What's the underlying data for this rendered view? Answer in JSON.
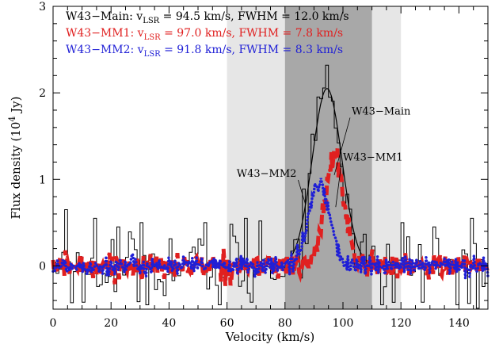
{
  "chart_data": {
    "type": "line",
    "xlabel": "Velocity (km/s)",
    "ylabel_parts": {
      "main": "Flux density (10",
      "sup": "4",
      "tail": " Jy)"
    },
    "xlim": [
      0,
      150
    ],
    "ylim": [
      -0.5,
      3
    ],
    "xticks": [
      0,
      20,
      40,
      60,
      80,
      100,
      120,
      140
    ],
    "xtick_labels": [
      "0",
      "20",
      "40",
      "60",
      "80",
      "100",
      "120",
      "140"
    ],
    "yticks": [
      0,
      1,
      2,
      3
    ],
    "ytick_labels": [
      "0",
      "1",
      "2",
      "3"
    ],
    "grid": false,
    "shaded_regions": [
      {
        "x": [
          60,
          120
        ],
        "color": "#e6e6e6"
      },
      {
        "x": [
          80,
          110
        ],
        "color": "#a8a8a8"
      }
    ],
    "legend_lines": [
      {
        "name": "W43−Main",
        "sep": ": v",
        "sub": "LSR",
        "rest": " = 94.5 km/s, FWHM = 12.0 km/s",
        "color": "#000000"
      },
      {
        "name": "W43−MM1",
        "sep": ": v",
        "sub": "LSR",
        "rest": " = 97.0 km/s, FWHM = 7.8 km/s",
        "color": "#e02020"
      },
      {
        "name": "W43−MM2",
        "sep": ": v",
        "sub": "LSR",
        "rest": " = 91.8 km/s, FWHM = 8.3 km/s",
        "color": "#1f1fd6"
      }
    ],
    "annotations": [
      {
        "text": "W43−Main",
        "x": 103,
        "y": 1.75,
        "anchor": "start",
        "line_to": [
          97,
          1.05
        ]
      },
      {
        "text": "W43−MM1",
        "x": 100,
        "y": 1.22,
        "anchor": "start",
        "line_to": [
          97.5,
          0.68
        ]
      },
      {
        "text": "W43−MM2",
        "x": 84,
        "y": 1.03,
        "anchor": "end",
        "line_to": [
          87,
          0.72
        ]
      }
    ],
    "series": [
      {
        "name": "W43−Main",
        "kind": "histogram",
        "color": "#000000",
        "gauss": {
          "amp": 2.05,
          "center": 94.5,
          "fwhm": 12.0
        },
        "noise_sigma": 0.2,
        "spike_points": [
          {
            "x": 4,
            "y": 0.65
          },
          {
            "x": 14,
            "y": 0.55
          },
          {
            "x": 22,
            "y": 0.45
          },
          {
            "x": 30,
            "y": 0.5
          },
          {
            "x": 52,
            "y": 0.5
          },
          {
            "x": 61,
            "y": 0.48
          },
          {
            "x": 66,
            "y": 0.55
          },
          {
            "x": 71,
            "y": 0.52
          },
          {
            "x": 94,
            "y": 2.32
          },
          {
            "x": 120,
            "y": 0.5
          },
          {
            "x": 131,
            "y": 0.45
          },
          {
            "x": 144,
            "y": 0.55
          },
          {
            "x": 10,
            "y": -0.42
          },
          {
            "x": 32,
            "y": -0.45
          },
          {
            "x": 57,
            "y": -0.45
          },
          {
            "x": 68,
            "y": -0.42
          },
          {
            "x": 113,
            "y": -0.45
          },
          {
            "x": 127,
            "y": -0.42
          },
          {
            "x": 139,
            "y": -0.45
          }
        ]
      },
      {
        "name": "W43−MM1",
        "kind": "dashed",
        "color": "#e02020",
        "gauss": {
          "amp": 1.25,
          "center": 97.0,
          "fwhm": 7.8
        },
        "noise_sigma": 0.07
      },
      {
        "name": "W43−MM2",
        "kind": "dotted",
        "color": "#1f1fd6",
        "gauss": {
          "amp": 0.98,
          "center": 91.8,
          "fwhm": 8.3
        },
        "noise_sigma": 0.055
      }
    ]
  }
}
